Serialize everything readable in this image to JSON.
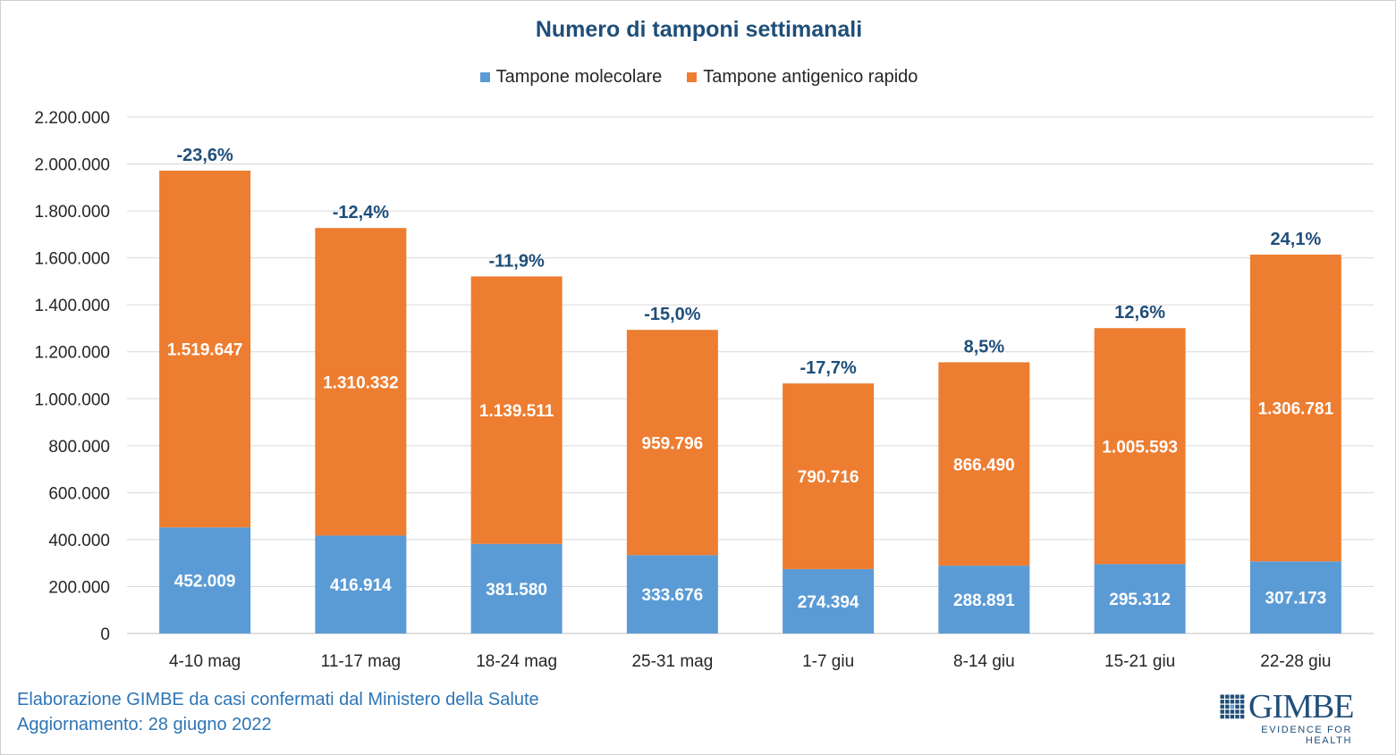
{
  "colors": {
    "molecular": "#5b9bd5",
    "antigen": "#ed7d31",
    "pct": "#1f4e79",
    "grid": "#d9d9d9",
    "text": "#262626"
  },
  "footer": {
    "line1": "Elaborazione GIMBE da casi confermati dal Ministero della Salute",
    "line2": "Aggiornamento: 28 giugno 2022"
  },
  "logo": {
    "name": "GIMBE",
    "tagline": "EVIDENCE FOR HEALTH",
    "icon": "grid-logo-icon"
  },
  "chart_data": {
    "type": "bar",
    "stacked": true,
    "title": "Numero di tamponi settimanali",
    "xlabel": "",
    "ylabel": "",
    "ylim": [
      0,
      2200000
    ],
    "ytick_step": 200000,
    "yticks": [
      "0",
      "200.000",
      "400.000",
      "600.000",
      "800.000",
      "1.000.000",
      "1.200.000",
      "1.400.000",
      "1.600.000",
      "1.800.000",
      "2.000.000",
      "2.200.000"
    ],
    "grid": true,
    "legend_position": "top",
    "categories": [
      "4-10 mag",
      "11-17 mag",
      "18-24 mag",
      "25-31 mag",
      "1-7 giu",
      "8-14 giu",
      "15-21 giu",
      "22-28 giu"
    ],
    "series": [
      {
        "name": "Tampone molecolare",
        "color": "#5b9bd5",
        "values": [
          452009,
          416914,
          381580,
          333676,
          274394,
          288891,
          295312,
          307173
        ],
        "labels": [
          "452.009",
          "416.914",
          "381.580",
          "333.676",
          "274.394",
          "288.891",
          "295.312",
          "307.173"
        ]
      },
      {
        "name": "Tampone antigenico rapido",
        "color": "#ed7d31",
        "values": [
          1519647,
          1310332,
          1139511,
          959796,
          790716,
          866490,
          1005593,
          1306781
        ],
        "labels": [
          "1.519.647",
          "1.310.332",
          "1.139.511",
          "959.796",
          "790.716",
          "866.490",
          "1.005.593",
          "1.306.781"
        ]
      }
    ],
    "annotations": [
      "-23,6%",
      "-12,4%",
      "-11,9%",
      "-15,0%",
      "-17,7%",
      "8,5%",
      "12,6%",
      "24,1%"
    ]
  }
}
